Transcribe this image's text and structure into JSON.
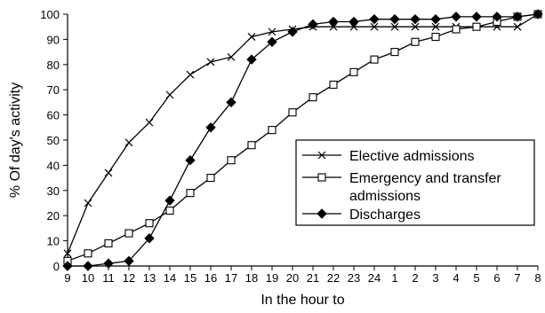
{
  "chart_data": {
    "type": "line",
    "title": "",
    "xlabel": "In the hour to",
    "ylabel": "% Of day's activity",
    "ylim": [
      0,
      100
    ],
    "yticks": [
      "0",
      "10",
      "20",
      "30",
      "40",
      "50",
      "60",
      "70",
      "80",
      "90",
      "100"
    ],
    "categories": [
      "9",
      "10",
      "11",
      "12",
      "13",
      "14",
      "15",
      "16",
      "17",
      "18",
      "19",
      "20",
      "21",
      "22",
      "23",
      "24",
      "1",
      "2",
      "3",
      "4",
      "5",
      "6",
      "7",
      "8"
    ],
    "grid": false,
    "legend_position": "right-middle",
    "series": [
      {
        "name": "Elective admissions",
        "marker": "x",
        "color": "#000000",
        "values": [
          5,
          25,
          37,
          49,
          57,
          68,
          76,
          81,
          83,
          91,
          93,
          94,
          95,
          95,
          95,
          95,
          95,
          95,
          95,
          95,
          95,
          95,
          95,
          100
        ]
      },
      {
        "name": "Emergency and transfer admissions",
        "legend_lines": [
          "Emergency and transfer",
          "admissions"
        ],
        "marker": "square",
        "color": "#000000",
        "values": [
          2,
          5,
          9,
          13,
          17,
          22,
          29,
          35,
          42,
          48,
          54,
          61,
          67,
          72,
          77,
          82,
          85,
          89,
          91,
          94,
          95,
          97,
          99,
          100
        ]
      },
      {
        "name": "Discharges",
        "marker": "diamond",
        "color": "#000000",
        "values": [
          0,
          0,
          1,
          2,
          11,
          26,
          42,
          55,
          65,
          82,
          89,
          93,
          96,
          97,
          97,
          98,
          98,
          98,
          98,
          99,
          99,
          99,
          99,
          100
        ]
      }
    ]
  }
}
